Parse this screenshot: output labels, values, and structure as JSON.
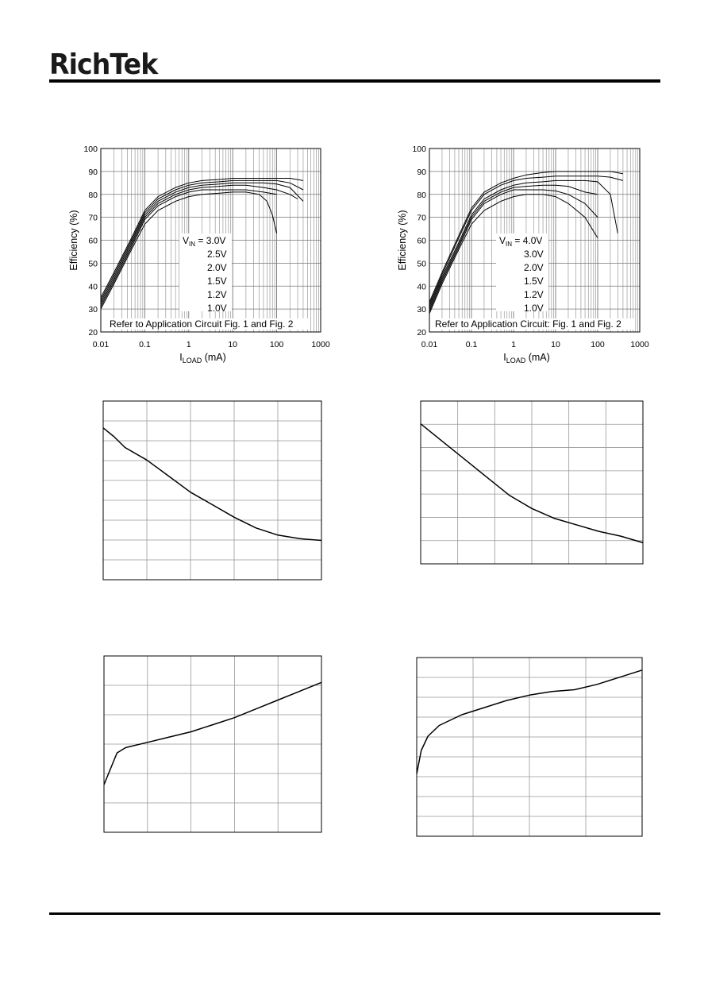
{
  "header": {
    "logo_text": "RichTek"
  },
  "chart_data": [
    {
      "type": "line",
      "xscale": "log",
      "xlim": [
        0.01,
        1000
      ],
      "ylim": [
        20,
        100
      ],
      "xticks": [
        "0.01",
        "0.1",
        "1",
        "10",
        "100",
        "1000"
      ],
      "yticks": [
        "20",
        "30",
        "40",
        "50",
        "60",
        "70",
        "80",
        "90",
        "100"
      ],
      "ylabel": "Efficiency (%)",
      "xlabel_main": "I",
      "xlabel_sub": "LOAD",
      "xlabel_unit": " (mA)",
      "legend_prefix": "V",
      "legend_sub": "IN",
      "legend_entries": [
        "= 3.0V",
        "2.5V",
        "2.0V",
        "1.5V",
        "1.2V",
        "1.0V"
      ],
      "note": "Refer to Application Circuit Fig. 1 and Fig. 2",
      "series": [
        {
          "label": "3.0V",
          "x": [
            0.01,
            0.02,
            0.05,
            0.1,
            0.2,
            0.5,
            1,
            2,
            5,
            10,
            20,
            50,
            100,
            200,
            400
          ],
          "y": [
            35,
            46,
            61,
            73,
            79,
            83,
            85,
            86,
            86.5,
            87,
            87,
            87,
            87,
            87,
            86
          ]
        },
        {
          "label": "2.5V",
          "x": [
            0.01,
            0.02,
            0.05,
            0.1,
            0.2,
            0.5,
            1,
            2,
            5,
            10,
            20,
            50,
            100,
            200,
            400
          ],
          "y": [
            34,
            45,
            60,
            72,
            78,
            82,
            84,
            85,
            85.5,
            86,
            86,
            86,
            86,
            85,
            82
          ]
        },
        {
          "label": "2.0V",
          "x": [
            0.01,
            0.02,
            0.05,
            0.1,
            0.2,
            0.5,
            1,
            2,
            5,
            10,
            20,
            50,
            100,
            200,
            400
          ],
          "y": [
            33,
            44,
            59,
            71,
            77,
            81,
            83,
            84,
            84.5,
            85,
            85,
            85,
            84.5,
            83,
            77
          ]
        },
        {
          "label": "1.5V",
          "x": [
            0.01,
            0.02,
            0.05,
            0.1,
            0.2,
            0.5,
            1,
            2,
            5,
            10,
            20,
            50,
            100,
            200,
            300
          ],
          "y": [
            32,
            43,
            58,
            70,
            76,
            80,
            82,
            83,
            83.5,
            84,
            84,
            83,
            82,
            80,
            78
          ]
        },
        {
          "label": "1.2V",
          "x": [
            0.01,
            0.02,
            0.05,
            0.1,
            0.2,
            0.5,
            1,
            2,
            5,
            10,
            20,
            50,
            100
          ],
          "y": [
            31,
            42,
            57,
            69,
            75,
            79,
            81,
            82,
            82,
            82,
            82,
            81,
            80
          ]
        },
        {
          "label": "1.0V",
          "x": [
            0.01,
            0.02,
            0.05,
            0.1,
            0.2,
            0.5,
            1,
            2,
            5,
            10,
            20,
            40,
            60,
            80,
            100
          ],
          "y": [
            30,
            41,
            56,
            67,
            73,
            77,
            79,
            80,
            80.5,
            81,
            81,
            80,
            77,
            71,
            63
          ]
        }
      ]
    },
    {
      "type": "line",
      "xscale": "log",
      "xlim": [
        0.01,
        1000
      ],
      "ylim": [
        20,
        100
      ],
      "xticks": [
        "0.01",
        "0.1",
        "1",
        "10",
        "100",
        "1000"
      ],
      "yticks": [
        "20",
        "30",
        "40",
        "50",
        "60",
        "70",
        "80",
        "90",
        "100"
      ],
      "ylabel": "Efficiency (%)",
      "xlabel_main": "I",
      "xlabel_sub": "LOAD",
      "xlabel_unit": " (mA)",
      "legend_prefix": "V",
      "legend_sub": "IN",
      "legend_entries": [
        "= 4.0V",
        "3.0V",
        "2.0V",
        "1.5V",
        "1.2V",
        "1.0V"
      ],
      "note": "Refer to Application Circuit: Fig. 1 and Fig. 2",
      "series": [
        {
          "label": "4.0V",
          "x": [
            0.01,
            0.02,
            0.05,
            0.1,
            0.2,
            0.5,
            1,
            2,
            5,
            10,
            20,
            50,
            100,
            200,
            400
          ],
          "y": [
            33,
            46,
            62,
            74,
            81,
            85,
            87,
            88.5,
            89.5,
            90,
            90,
            90,
            90,
            90,
            89
          ]
        },
        {
          "label": "3.0V",
          "x": [
            0.01,
            0.02,
            0.05,
            0.1,
            0.2,
            0.5,
            1,
            2,
            5,
            10,
            20,
            50,
            100,
            200,
            400
          ],
          "y": [
            32,
            45,
            61,
            73,
            80,
            84,
            86,
            87,
            87.5,
            88,
            88,
            88,
            88,
            87.5,
            86
          ]
        },
        {
          "label": "2.0V",
          "x": [
            0.01,
            0.02,
            0.05,
            0.1,
            0.2,
            0.5,
            1,
            2,
            5,
            10,
            20,
            50,
            100,
            200,
            300
          ],
          "y": [
            31,
            44,
            59,
            71,
            78,
            82,
            84,
            85,
            85.5,
            86,
            86,
            86,
            85.5,
            80,
            63
          ]
        },
        {
          "label": "1.5V",
          "x": [
            0.01,
            0.02,
            0.05,
            0.1,
            0.2,
            0.5,
            1,
            2,
            5,
            10,
            20,
            50,
            100
          ],
          "y": [
            30,
            43,
            58,
            70,
            77,
            81,
            83,
            83.5,
            84,
            84,
            83.5,
            81,
            80
          ]
        },
        {
          "label": "1.2V",
          "x": [
            0.01,
            0.02,
            0.05,
            0.1,
            0.2,
            0.5,
            1,
            2,
            5,
            10,
            20,
            50,
            100
          ],
          "y": [
            29,
            42,
            57,
            69,
            76,
            80,
            82,
            82,
            82,
            81.5,
            80,
            76,
            70
          ]
        },
        {
          "label": "1.0V",
          "x": [
            0.01,
            0.02,
            0.05,
            0.1,
            0.2,
            0.5,
            1,
            2,
            5,
            10,
            20,
            50,
            100
          ],
          "y": [
            28,
            41,
            56,
            67,
            73,
            77,
            79,
            80,
            80,
            79,
            76,
            70,
            61
          ]
        }
      ]
    },
    {
      "type": "line",
      "ygrid_rows": 9,
      "xgrid_cols": 5,
      "series": [
        {
          "x": [
            0.0,
            0.05,
            0.1,
            0.2,
            0.3,
            0.4,
            0.5,
            0.6,
            0.7,
            0.8,
            0.9,
            1.0
          ],
          "y": [
            0.85,
            0.8,
            0.74,
            0.67,
            0.58,
            0.49,
            0.42,
            0.35,
            0.29,
            0.25,
            0.23,
            0.22
          ]
        }
      ]
    },
    {
      "type": "line",
      "ygrid_rows": 7,
      "xgrid_cols": 6,
      "series": [
        {
          "x": [
            0.0,
            0.1,
            0.2,
            0.3,
            0.4,
            0.5,
            0.6,
            0.7,
            0.8,
            0.9,
            1.0
          ],
          "y": [
            0.86,
            0.75,
            0.64,
            0.53,
            0.42,
            0.34,
            0.28,
            0.24,
            0.2,
            0.17,
            0.13
          ]
        }
      ]
    },
    {
      "type": "line",
      "ygrid_rows": 6,
      "xgrid_cols": 5,
      "series": [
        {
          "x": [
            0.0,
            0.03,
            0.06,
            0.1,
            0.2,
            0.3,
            0.4,
            0.5,
            0.6,
            0.7,
            0.8,
            0.9,
            1.0
          ],
          "y": [
            0.27,
            0.36,
            0.45,
            0.48,
            0.51,
            0.54,
            0.57,
            0.61,
            0.65,
            0.7,
            0.75,
            0.8,
            0.85
          ]
        }
      ]
    },
    {
      "type": "line",
      "ygrid_rows": 9,
      "xgrid_cols": 4,
      "series": [
        {
          "x": [
            0.0,
            0.02,
            0.05,
            0.1,
            0.2,
            0.3,
            0.4,
            0.5,
            0.6,
            0.7,
            0.8,
            0.9,
            1.0
          ],
          "y": [
            0.35,
            0.48,
            0.56,
            0.62,
            0.68,
            0.72,
            0.76,
            0.79,
            0.81,
            0.82,
            0.85,
            0.89,
            0.93
          ]
        }
      ]
    }
  ]
}
